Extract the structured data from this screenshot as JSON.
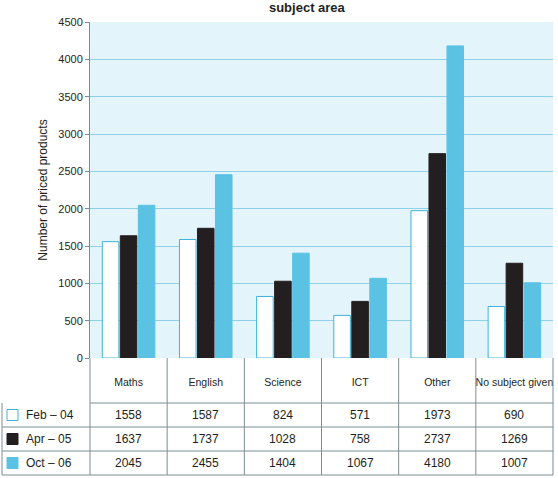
{
  "chart_data": {
    "type": "bar",
    "title": "subject area",
    "y_label": "Number of priced products",
    "categories": [
      "Maths",
      "English",
      "Science",
      "ICT",
      "Other",
      "No subject given"
    ],
    "series": [
      {
        "name": "Feb – 04",
        "color": "#ffffff",
        "values": [
          1558,
          1587,
          824,
          571,
          1973,
          690
        ]
      },
      {
        "name": "Apr – 05",
        "color": "#231f20",
        "values": [
          1637,
          1737,
          1028,
          758,
          2737,
          1269
        ]
      },
      {
        "name": "Oct – 06",
        "color": "#5bc2e4",
        "values": [
          2045,
          2455,
          1404,
          1067,
          4180,
          1007
        ]
      }
    ],
    "ylim": [
      0,
      4500
    ],
    "yticks": [
      0,
      500,
      1000,
      1500,
      2000,
      2500,
      3000,
      3500,
      4000,
      4500
    ],
    "grid": true
  }
}
